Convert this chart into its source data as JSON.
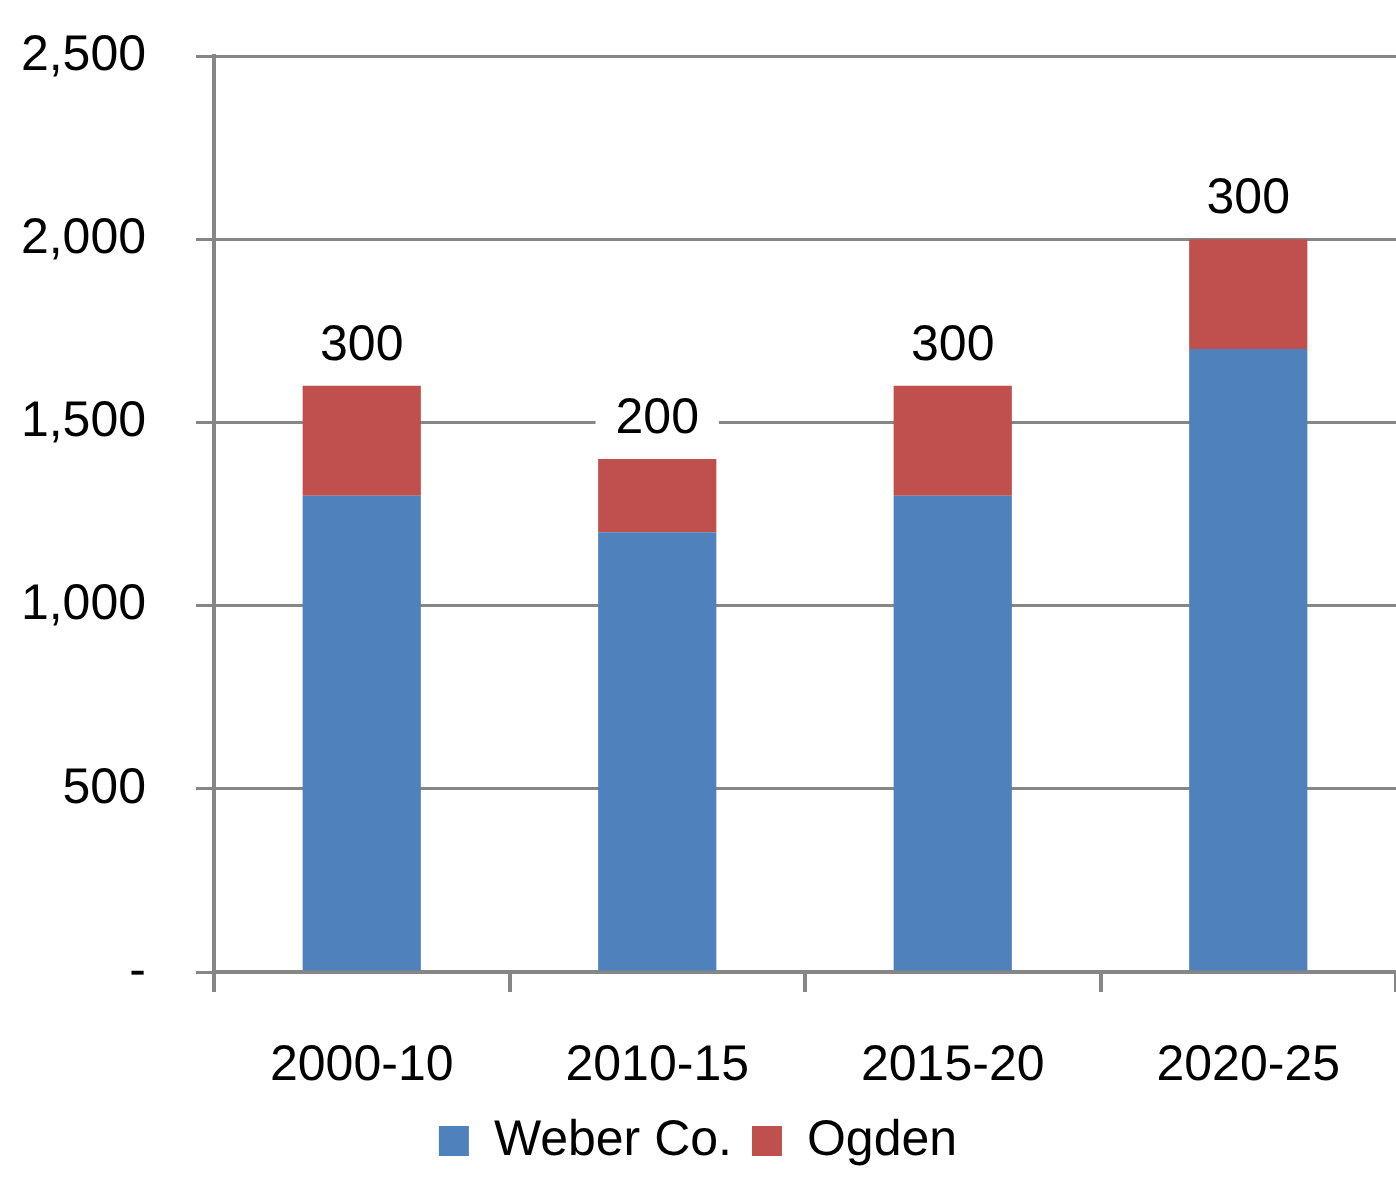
{
  "chart_data": {
    "type": "bar",
    "categories": [
      "2000-10",
      "2010-15",
      "2015-20",
      "2020-25"
    ],
    "series": [
      {
        "name": "Weber Co.",
        "color": "#4f81bd",
        "values": [
          1300,
          1200,
          1300,
          1700
        ]
      },
      {
        "name": "Ogden",
        "color": "#c0504d",
        "values": [
          300,
          200,
          300,
          300
        ],
        "value_labels": [
          "300",
          "200",
          "300",
          "300"
        ]
      }
    ],
    "stacked": true,
    "ylim": [
      0,
      2500
    ],
    "yticks": [
      {
        "value": 0,
        "label": "-"
      },
      500,
      {
        "value": 1000,
        "label": "1,000"
      },
      {
        "value": 1500,
        "label": "1,500"
      },
      {
        "value": 2000,
        "label": "2,000"
      },
      {
        "value": 2500,
        "label": "2,500"
      }
    ],
    "grid": "y",
    "legend": "bottom"
  }
}
